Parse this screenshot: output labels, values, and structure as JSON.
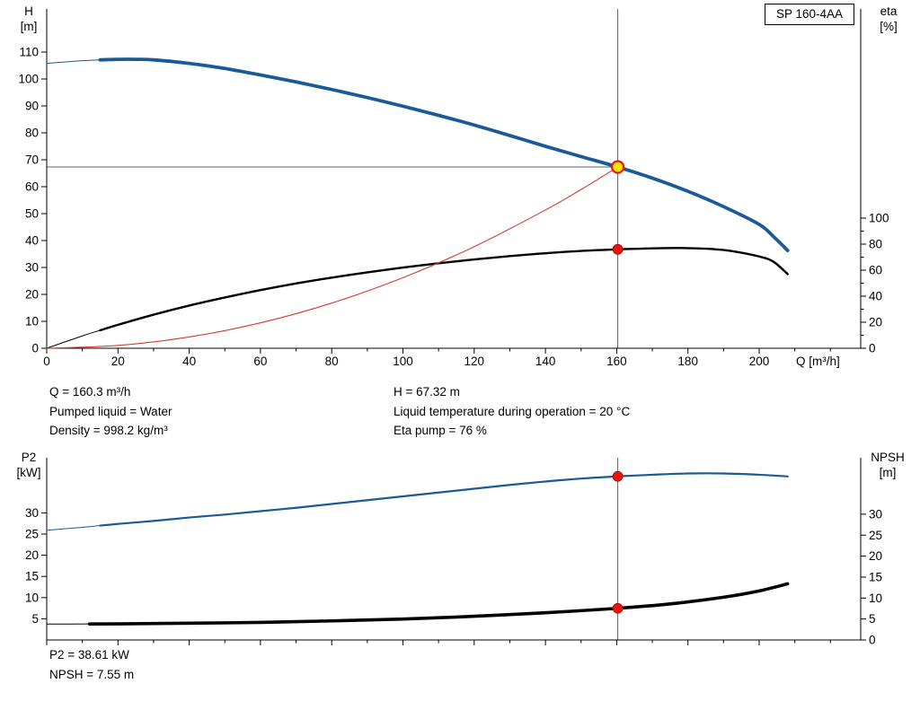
{
  "model": "SP 160-4AA",
  "titles": {
    "top_left": [
      "H",
      "[m]"
    ],
    "top_right": [
      "eta",
      "[%]"
    ],
    "bottom_left": [
      "P2",
      "[kW]"
    ],
    "bottom_right": [
      "NPSH",
      "[m]"
    ]
  },
  "info": {
    "left": [
      "Q = 160.3 m³/h",
      "Pumped liquid = Water",
      "Density = 998.2 kg/m³"
    ],
    "right": [
      "H = 67.32 m",
      "Liquid temperature during operation = 20 °C",
      "Eta pump = 76 %"
    ]
  },
  "footer": [
    "P2 = 38.61 kW",
    "NPSH = 7.55 m"
  ],
  "colors": {
    "head_curve": "#1b5a96",
    "power_curve": "#1b5a96",
    "black_curve": "#000000",
    "system_curve": "#d03c32",
    "marker_red": "#e8150d",
    "marker_red_edge": "#b00000",
    "marker_yellow": "#ffe400",
    "crosshair": "#606060",
    "axis": "#000000"
  },
  "chart_data": [
    {
      "type": "line",
      "name": "qh-eta-chart",
      "title": "SP 160-4AA",
      "x_axis": {
        "label": "Q [m³/h]",
        "min": 0,
        "max": 228.5,
        "major_ticks": [
          0,
          20,
          40,
          60,
          80,
          100,
          120,
          140,
          160,
          180,
          200
        ],
        "minor_step": 10,
        "minor_max": 220,
        "show_labels": true
      },
      "left_axis": {
        "label": "H [m]",
        "min": 0,
        "ticks": [
          0,
          10,
          20,
          30,
          40,
          50,
          60,
          70,
          80,
          90,
          100,
          110
        ]
      },
      "right_axis": {
        "label": "eta [%]",
        "min": 0,
        "ticks": [
          0,
          20,
          40,
          60,
          80,
          100
        ],
        "minor_step": 10,
        "minor_max": 100
      },
      "series": [
        {
          "name": "head-curve",
          "axis": "left",
          "color_key": "head_curve",
          "width": 3.8,
          "thin_until": 15,
          "points": [
            [
              0,
              105.8
            ],
            [
              5,
              106.3
            ],
            [
              10,
              106.8
            ],
            [
              15,
              107.1
            ],
            [
              20,
              107.3
            ],
            [
              25,
              107.3
            ],
            [
              30,
              107.1
            ],
            [
              40,
              105.8
            ],
            [
              50,
              103.9
            ],
            [
              60,
              101.5
            ],
            [
              70,
              98.9
            ],
            [
              80,
              96.1
            ],
            [
              90,
              93.1
            ],
            [
              100,
              89.9
            ],
            [
              110,
              86.5
            ],
            [
              120,
              82.9
            ],
            [
              130,
              79.0
            ],
            [
              140,
              75.0
            ],
            [
              150,
              71.2
            ],
            [
              160.3,
              67.32
            ],
            [
              170,
              63.2
            ],
            [
              180,
              58.3
            ],
            [
              190,
              52.6
            ],
            [
              200,
              46.0
            ],
            [
              204,
              41.5
            ],
            [
              208,
              36.3
            ]
          ]
        },
        {
          "name": "eta-curve",
          "axis": "right",
          "color_key": "black_curve",
          "width": 2.4,
          "thin_until": 13,
          "points": [
            [
              0,
              0
            ],
            [
              10,
              9.5
            ],
            [
              15,
              13.8
            ],
            [
              20,
              18
            ],
            [
              30,
              25.8
            ],
            [
              40,
              32.8
            ],
            [
              50,
              39
            ],
            [
              60,
              44.7
            ],
            [
              70,
              49.8
            ],
            [
              80,
              54.3
            ],
            [
              90,
              58.3
            ],
            [
              100,
              62
            ],
            [
              110,
              65.3
            ],
            [
              120,
              68.2
            ],
            [
              130,
              70.8
            ],
            [
              140,
              73
            ],
            [
              150,
              74.8
            ],
            [
              160.3,
              76
            ],
            [
              170,
              76.8
            ],
            [
              178,
              77
            ],
            [
              185,
              76.5
            ],
            [
              192,
              74.8
            ],
            [
              200,
              70.5
            ],
            [
              204,
              66.5
            ],
            [
              208,
              57
            ]
          ]
        },
        {
          "name": "system-curve",
          "axis": "left",
          "color_key": "system_curve",
          "width": 1.1,
          "points": [
            [
              0,
              0
            ],
            [
              20,
              1.05
            ],
            [
              40,
              4.19
            ],
            [
              60,
              9.43
            ],
            [
              80,
              16.77
            ],
            [
              100,
              26.2
            ],
            [
              120,
              37.72
            ],
            [
              140,
              51.35
            ],
            [
              150,
              58.95
            ],
            [
              160.3,
              67.32
            ]
          ]
        }
      ],
      "markers": [
        {
          "name": "duty-point-marker",
          "axis": "left",
          "x": 160.3,
          "value": 67.32,
          "style": "ring",
          "r": 6.5
        },
        {
          "name": "eta-point-marker",
          "axis": "right",
          "x": 160.3,
          "value": 76,
          "style": "dot",
          "r": 5.5
        }
      ],
      "crosshair": {
        "x": 160.3,
        "y_value": 67.32,
        "y_axis": "left"
      }
    },
    {
      "type": "line",
      "name": "p2-npsh-chart",
      "x_axis": {
        "label": "",
        "min": 0,
        "max": 228.5,
        "major_ticks": [
          0,
          20,
          40,
          60,
          80,
          100,
          120,
          140,
          160,
          180,
          200
        ],
        "minor_step": 10,
        "minor_max": 220,
        "show_labels": false
      },
      "left_axis": {
        "label": "P2 [kW]",
        "min": 0,
        "ticks": [
          5,
          10,
          15,
          20,
          25,
          30
        ]
      },
      "right_axis": {
        "label": "NPSH [m]",
        "min": 0,
        "ticks": [
          0,
          5,
          10,
          15,
          20,
          25,
          30
        ]
      },
      "series": [
        {
          "name": "p2-curve",
          "axis": "left",
          "color_key": "power_curve",
          "width": 2.2,
          "thin_until": 14,
          "points": [
            [
              0,
              25.9
            ],
            [
              10,
              26.6
            ],
            [
              15,
              27.0
            ],
            [
              20,
              27.4
            ],
            [
              30,
              28.1
            ],
            [
              40,
              28.9
            ],
            [
              50,
              29.6
            ],
            [
              60,
              30.4
            ],
            [
              70,
              31.2
            ],
            [
              80,
              32.1
            ],
            [
              90,
              33.0
            ],
            [
              100,
              33.9
            ],
            [
              110,
              34.8
            ],
            [
              120,
              35.7
            ],
            [
              130,
              36.6
            ],
            [
              140,
              37.4
            ],
            [
              150,
              38.1
            ],
            [
              160.3,
              38.61
            ],
            [
              170,
              39.0
            ],
            [
              180,
              39.3
            ],
            [
              190,
              39.3
            ],
            [
              200,
              39.0
            ],
            [
              208,
              38.6
            ]
          ]
        },
        {
          "name": "npsh-curve",
          "axis": "right",
          "color_key": "black_curve",
          "width": 3.6,
          "thin_until": 12,
          "points": [
            [
              0,
              3.8
            ],
            [
              12,
              3.82
            ],
            [
              20,
              3.85
            ],
            [
              40,
              4.0
            ],
            [
              60,
              4.2
            ],
            [
              80,
              4.55
            ],
            [
              100,
              5.0
            ],
            [
              120,
              5.65
            ],
            [
              140,
              6.5
            ],
            [
              160.3,
              7.55
            ],
            [
              175,
              8.6
            ],
            [
              190,
              10.2
            ],
            [
              200,
              11.7
            ],
            [
              208,
              13.4
            ]
          ]
        }
      ],
      "markers": [
        {
          "name": "p2-point-marker",
          "axis": "left",
          "x": 160.3,
          "value": 38.61,
          "style": "dot",
          "r": 5.5
        },
        {
          "name": "npsh-point-marker",
          "axis": "right",
          "x": 160.3,
          "value": 7.55,
          "style": "dot",
          "r": 5.5
        }
      ],
      "crosshair": {
        "x": 160.3
      }
    }
  ]
}
